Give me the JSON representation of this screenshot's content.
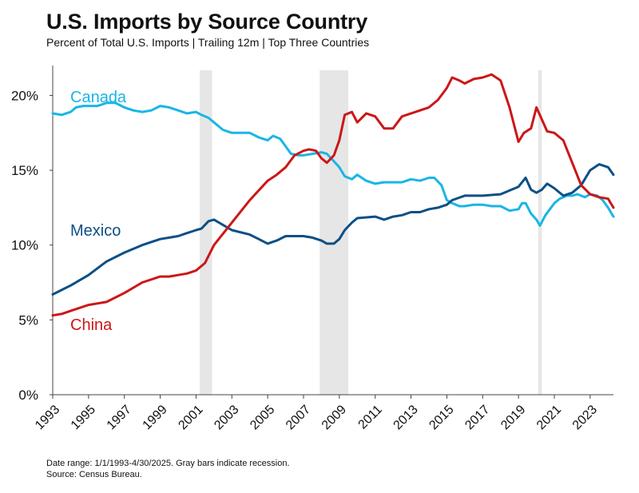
{
  "title": "U.S. Imports by Source Country",
  "subtitle": "Percent of Total U.S. Imports | Trailing 12m | Top Three Countries",
  "footnote": {
    "line1": "Date range: 1/1/1993-4/30/2025.  Gray bars indicate recession.",
    "line2": "Source: Census Bureau."
  },
  "chart_data": {
    "type": "line",
    "xlim": [
      1993,
      2024.3
    ],
    "ylim": [
      0,
      0.22
    ],
    "y_ticks": [
      0,
      0.05,
      0.1,
      0.15,
      0.2
    ],
    "y_tick_labels": [
      "0%",
      "5%",
      "10%",
      "15%",
      "20%"
    ],
    "x_ticks": [
      1993,
      1995,
      1997,
      1999,
      2001,
      2003,
      2005,
      2007,
      2009,
      2011,
      2013,
      2015,
      2017,
      2019,
      2021,
      2023
    ],
    "x_tick_labels": [
      "1993",
      "1995",
      "1997",
      "1999",
      "2001",
      "2003",
      "2005",
      "2007",
      "2009",
      "2011",
      "2013",
      "2015",
      "2017",
      "2019",
      "2021",
      "2023"
    ],
    "grid": false,
    "recessions": [
      [
        2001.2,
        2001.9
      ],
      [
        2007.9,
        2009.5
      ],
      [
        2020.1,
        2020.3
      ]
    ],
    "series": [
      {
        "name": "Canada",
        "color": "#1AB5E6",
        "x": [
          1993,
          1993.5,
          1994,
          1994.3,
          1994.7,
          1995.2,
          1995.5,
          1996,
          1996.5,
          1997,
          1997.5,
          1998,
          1998.5,
          1999,
          1999.5,
          2000,
          2000.5,
          2001,
          2001.3,
          2001.7,
          2002,
          2002.5,
          2003,
          2003.5,
          2004,
          2004.5,
          2005,
          2005.3,
          2005.7,
          2006,
          2006.3,
          2006.7,
          2007,
          2007.5,
          2008,
          2008.3,
          2008.7,
          2009,
          2009.3,
          2009.7,
          2010,
          2010.5,
          2011,
          2011.5,
          2012,
          2012.5,
          2013,
          2013.5,
          2014,
          2014.3,
          2014.7,
          2015,
          2015.3,
          2015.7,
          2016,
          2016.5,
          2017,
          2017.5,
          2018,
          2018.5,
          2019,
          2019.2,
          2019.4,
          2019.7,
          2020,
          2020.2,
          2020.5,
          2021,
          2021.3,
          2021.7,
          2022,
          2022.3,
          2022.7,
          2023,
          2023.4,
          2023.7,
          2024,
          2024.3
        ],
        "y": [
          0.188,
          0.187,
          0.189,
          0.192,
          0.193,
          0.193,
          0.193,
          0.195,
          0.195,
          0.192,
          0.19,
          0.189,
          0.19,
          0.193,
          0.192,
          0.19,
          0.188,
          0.189,
          0.187,
          0.185,
          0.182,
          0.177,
          0.175,
          0.175,
          0.175,
          0.172,
          0.17,
          0.173,
          0.171,
          0.166,
          0.161,
          0.16,
          0.16,
          0.161,
          0.162,
          0.161,
          0.156,
          0.152,
          0.146,
          0.144,
          0.147,
          0.143,
          0.141,
          0.142,
          0.142,
          0.142,
          0.144,
          0.143,
          0.145,
          0.145,
          0.14,
          0.13,
          0.128,
          0.126,
          0.126,
          0.127,
          0.127,
          0.126,
          0.126,
          0.123,
          0.124,
          0.128,
          0.128,
          0.121,
          0.117,
          0.113,
          0.12,
          0.128,
          0.131,
          0.133,
          0.133,
          0.134,
          0.132,
          0.134,
          0.133,
          0.13,
          0.125,
          0.119
        ]
      },
      {
        "name": "Mexico",
        "color": "#0B4F86",
        "x": [
          1993,
          1993.5,
          1994,
          1995,
          1996,
          1997,
          1998,
          1999,
          1999.5,
          2000,
          2000.5,
          2001,
          2001.3,
          2001.7,
          2002,
          2003,
          2004,
          2004.5,
          2005,
          2005.5,
          2006,
          2007,
          2007.5,
          2008,
          2008.3,
          2008.7,
          2009,
          2009.3,
          2009.7,
          2010,
          2011,
          2011.5,
          2012,
          2012.5,
          2013,
          2013.5,
          2014,
          2014.5,
          2015,
          2015.3,
          2016,
          2017,
          2018,
          2019,
          2019.2,
          2019.4,
          2019.7,
          2020,
          2020.3,
          2020.6,
          2021,
          2021.5,
          2022,
          2022.5,
          2023,
          2023.5,
          2024,
          2024.3
        ],
        "y": [
          0.067,
          0.07,
          0.073,
          0.08,
          0.089,
          0.095,
          0.1,
          0.104,
          0.105,
          0.106,
          0.108,
          0.11,
          0.111,
          0.116,
          0.117,
          0.11,
          0.107,
          0.104,
          0.101,
          0.103,
          0.106,
          0.106,
          0.105,
          0.103,
          0.101,
          0.101,
          0.104,
          0.11,
          0.115,
          0.118,
          0.119,
          0.117,
          0.119,
          0.12,
          0.122,
          0.122,
          0.124,
          0.125,
          0.127,
          0.13,
          0.133,
          0.133,
          0.134,
          0.139,
          0.142,
          0.145,
          0.137,
          0.135,
          0.137,
          0.141,
          0.138,
          0.133,
          0.135,
          0.14,
          0.15,
          0.154,
          0.152,
          0.147
        ]
      },
      {
        "name": "China",
        "color": "#CC1717",
        "x": [
          1993,
          1993.5,
          1994,
          1995,
          1996,
          1997,
          1998,
          1999,
          1999.5,
          2000,
          2000.5,
          2001,
          2001.5,
          2002,
          2003,
          2004,
          2005,
          2005.5,
          2006,
          2006.5,
          2007,
          2007.3,
          2007.7,
          2008,
          2008.3,
          2008.7,
          2009,
          2009.3,
          2009.7,
          2010,
          2010.5,
          2011,
          2011.5,
          2012,
          2012.5,
          2013,
          2013.5,
          2014,
          2014.5,
          2015,
          2015.3,
          2015.7,
          2016,
          2016.5,
          2017,
          2017.5,
          2018,
          2018.5,
          2019,
          2019.3,
          2019.7,
          2020,
          2020.3,
          2020.6,
          2021,
          2021.5,
          2022,
          2022.5,
          2023,
          2023.5,
          2024,
          2024.3
        ],
        "y": [
          0.053,
          0.054,
          0.056,
          0.06,
          0.062,
          0.068,
          0.075,
          0.079,
          0.079,
          0.08,
          0.081,
          0.083,
          0.088,
          0.1,
          0.115,
          0.13,
          0.143,
          0.147,
          0.152,
          0.16,
          0.163,
          0.164,
          0.163,
          0.158,
          0.155,
          0.16,
          0.17,
          0.187,
          0.189,
          0.182,
          0.188,
          0.186,
          0.178,
          0.178,
          0.186,
          0.188,
          0.19,
          0.192,
          0.197,
          0.205,
          0.212,
          0.21,
          0.208,
          0.211,
          0.212,
          0.214,
          0.21,
          0.192,
          0.169,
          0.175,
          0.178,
          0.192,
          0.184,
          0.176,
          0.175,
          0.17,
          0.155,
          0.14,
          0.134,
          0.132,
          0.131,
          0.125
        ]
      }
    ],
    "series_labels": [
      {
        "name": "Canada",
        "text": "Canada"
      },
      {
        "name": "Mexico",
        "text": "Mexico"
      },
      {
        "name": "China",
        "text": "China"
      }
    ]
  }
}
